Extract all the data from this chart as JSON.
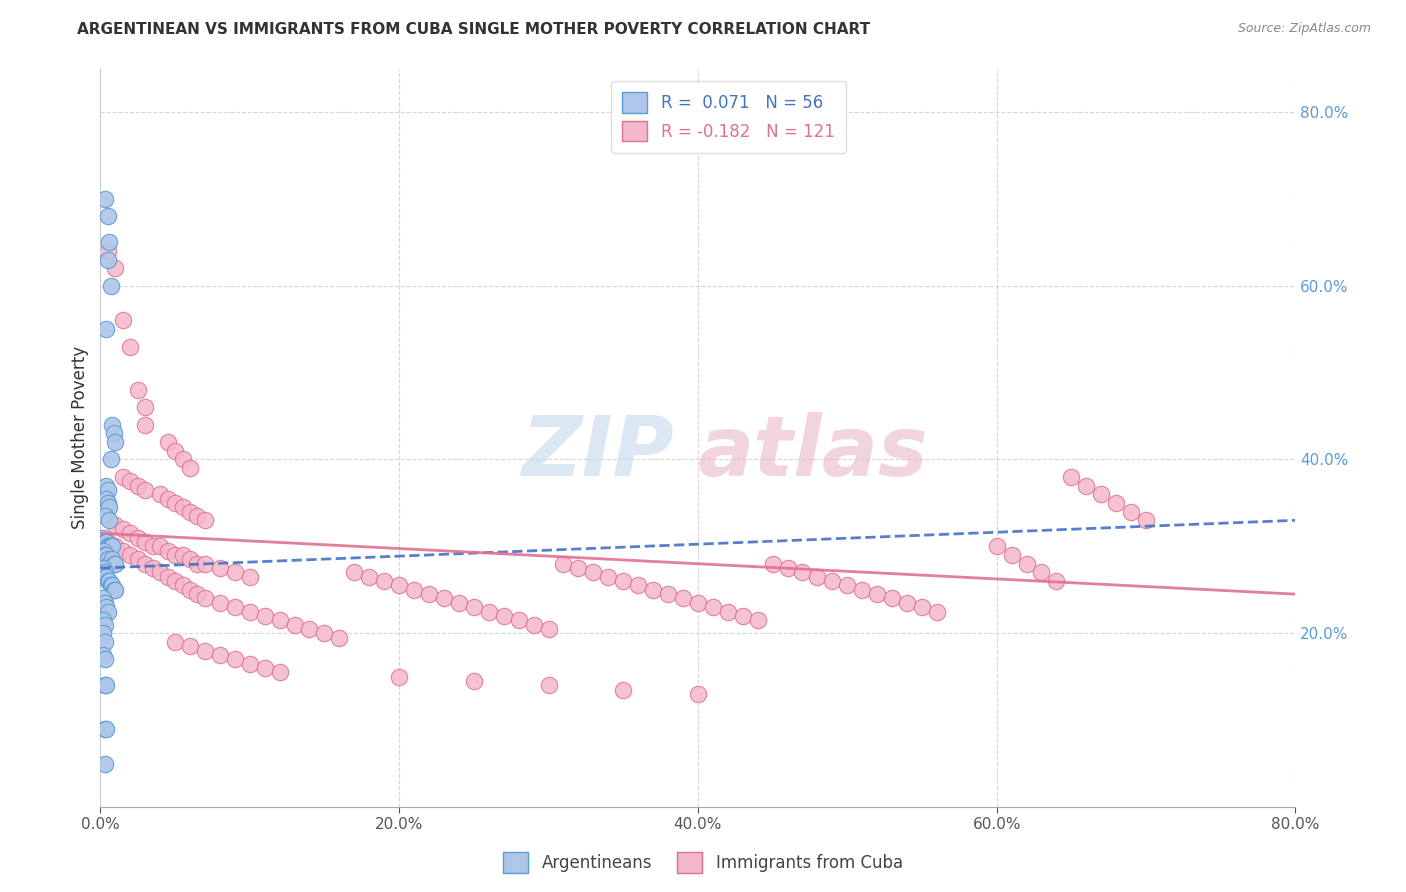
{
  "title": "ARGENTINEAN VS IMMIGRANTS FROM CUBA SINGLE MOTHER POVERTY CORRELATION CHART",
  "source": "Source: ZipAtlas.com",
  "ylabel": "Single Mother Poverty",
  "xlim": [
    0.0,
    0.8
  ],
  "ylim": [
    0.0,
    0.85
  ],
  "xticks": [
    0.0,
    0.2,
    0.4,
    0.6,
    0.8
  ],
  "xtick_labels": [
    "0.0%",
    "20.0%",
    "40.0%",
    "60.0%",
    "80.0%"
  ],
  "right_yticks": [
    0.2,
    0.4,
    0.6,
    0.8
  ],
  "right_ytick_labels": [
    "20.0%",
    "40.0%",
    "60.0%",
    "80.0%"
  ],
  "argentina_color": "#aec6e8",
  "argentina_edge": "#5b9bd5",
  "cuba_color": "#f4b8cb",
  "cuba_edge": "#e07090",
  "argentina_line_color": "#4472c4",
  "cuba_line_color": "#e07090",
  "watermark_zip_color": "#c5d8ee",
  "watermark_atlas_color": "#e8b8c8",
  "argentina_line_x": [
    0.0,
    0.8
  ],
  "argentina_line_y": [
    0.275,
    0.33
  ],
  "cuba_line_x": [
    0.0,
    0.8
  ],
  "cuba_line_y": [
    0.315,
    0.245
  ],
  "argentina_points": [
    [
      0.003,
      0.7
    ],
    [
      0.005,
      0.68
    ],
    [
      0.006,
      0.65
    ],
    [
      0.005,
      0.63
    ],
    [
      0.007,
      0.6
    ],
    [
      0.004,
      0.55
    ],
    [
      0.008,
      0.44
    ],
    [
      0.009,
      0.43
    ],
    [
      0.01,
      0.42
    ],
    [
      0.007,
      0.4
    ],
    [
      0.004,
      0.37
    ],
    [
      0.005,
      0.365
    ],
    [
      0.004,
      0.355
    ],
    [
      0.005,
      0.35
    ],
    [
      0.006,
      0.345
    ],
    [
      0.003,
      0.335
    ],
    [
      0.006,
      0.33
    ],
    [
      0.002,
      0.31
    ],
    [
      0.003,
      0.305
    ],
    [
      0.004,
      0.305
    ],
    [
      0.005,
      0.3
    ],
    [
      0.006,
      0.3
    ],
    [
      0.007,
      0.3
    ],
    [
      0.008,
      0.3
    ],
    [
      0.002,
      0.295
    ],
    [
      0.003,
      0.29
    ],
    [
      0.004,
      0.29
    ],
    [
      0.005,
      0.285
    ],
    [
      0.006,
      0.28
    ],
    [
      0.007,
      0.28
    ],
    [
      0.008,
      0.285
    ],
    [
      0.009,
      0.28
    ],
    [
      0.01,
      0.28
    ],
    [
      0.002,
      0.275
    ],
    [
      0.003,
      0.27
    ],
    [
      0.004,
      0.265
    ],
    [
      0.005,
      0.26
    ],
    [
      0.006,
      0.26
    ],
    [
      0.007,
      0.255
    ],
    [
      0.008,
      0.255
    ],
    [
      0.009,
      0.25
    ],
    [
      0.01,
      0.25
    ],
    [
      0.002,
      0.24
    ],
    [
      0.003,
      0.235
    ],
    [
      0.004,
      0.23
    ],
    [
      0.005,
      0.225
    ],
    [
      0.002,
      0.215
    ],
    [
      0.003,
      0.21
    ],
    [
      0.002,
      0.2
    ],
    [
      0.003,
      0.19
    ],
    [
      0.002,
      0.175
    ],
    [
      0.003,
      0.17
    ],
    [
      0.003,
      0.14
    ],
    [
      0.004,
      0.14
    ],
    [
      0.003,
      0.09
    ],
    [
      0.004,
      0.09
    ],
    [
      0.003,
      0.05
    ]
  ],
  "cuba_points": [
    [
      0.005,
      0.64
    ],
    [
      0.01,
      0.62
    ],
    [
      0.015,
      0.56
    ],
    [
      0.02,
      0.53
    ],
    [
      0.025,
      0.48
    ],
    [
      0.03,
      0.46
    ],
    [
      0.03,
      0.44
    ],
    [
      0.045,
      0.42
    ],
    [
      0.05,
      0.41
    ],
    [
      0.055,
      0.4
    ],
    [
      0.06,
      0.39
    ],
    [
      0.015,
      0.38
    ],
    [
      0.02,
      0.375
    ],
    [
      0.025,
      0.37
    ],
    [
      0.03,
      0.365
    ],
    [
      0.04,
      0.36
    ],
    [
      0.045,
      0.355
    ],
    [
      0.05,
      0.35
    ],
    [
      0.055,
      0.345
    ],
    [
      0.06,
      0.34
    ],
    [
      0.065,
      0.335
    ],
    [
      0.07,
      0.33
    ],
    [
      0.01,
      0.325
    ],
    [
      0.015,
      0.32
    ],
    [
      0.02,
      0.315
    ],
    [
      0.025,
      0.31
    ],
    [
      0.03,
      0.305
    ],
    [
      0.035,
      0.3
    ],
    [
      0.04,
      0.3
    ],
    [
      0.045,
      0.295
    ],
    [
      0.05,
      0.29
    ],
    [
      0.055,
      0.29
    ],
    [
      0.06,
      0.285
    ],
    [
      0.065,
      0.28
    ],
    [
      0.07,
      0.28
    ],
    [
      0.08,
      0.275
    ],
    [
      0.09,
      0.27
    ],
    [
      0.1,
      0.265
    ],
    [
      0.005,
      0.305
    ],
    [
      0.01,
      0.3
    ],
    [
      0.015,
      0.295
    ],
    [
      0.02,
      0.29
    ],
    [
      0.025,
      0.285
    ],
    [
      0.03,
      0.28
    ],
    [
      0.035,
      0.275
    ],
    [
      0.04,
      0.27
    ],
    [
      0.045,
      0.265
    ],
    [
      0.05,
      0.26
    ],
    [
      0.055,
      0.255
    ],
    [
      0.06,
      0.25
    ],
    [
      0.065,
      0.245
    ],
    [
      0.07,
      0.24
    ],
    [
      0.08,
      0.235
    ],
    [
      0.09,
      0.23
    ],
    [
      0.1,
      0.225
    ],
    [
      0.11,
      0.22
    ],
    [
      0.12,
      0.215
    ],
    [
      0.13,
      0.21
    ],
    [
      0.14,
      0.205
    ],
    [
      0.15,
      0.2
    ],
    [
      0.16,
      0.195
    ],
    [
      0.17,
      0.27
    ],
    [
      0.18,
      0.265
    ],
    [
      0.19,
      0.26
    ],
    [
      0.2,
      0.255
    ],
    [
      0.21,
      0.25
    ],
    [
      0.22,
      0.245
    ],
    [
      0.23,
      0.24
    ],
    [
      0.24,
      0.235
    ],
    [
      0.25,
      0.23
    ],
    [
      0.26,
      0.225
    ],
    [
      0.27,
      0.22
    ],
    [
      0.28,
      0.215
    ],
    [
      0.29,
      0.21
    ],
    [
      0.3,
      0.205
    ],
    [
      0.31,
      0.28
    ],
    [
      0.32,
      0.275
    ],
    [
      0.33,
      0.27
    ],
    [
      0.34,
      0.265
    ],
    [
      0.35,
      0.26
    ],
    [
      0.36,
      0.255
    ],
    [
      0.37,
      0.25
    ],
    [
      0.38,
      0.245
    ],
    [
      0.39,
      0.24
    ],
    [
      0.4,
      0.235
    ],
    [
      0.41,
      0.23
    ],
    [
      0.42,
      0.225
    ],
    [
      0.43,
      0.22
    ],
    [
      0.44,
      0.215
    ],
    [
      0.45,
      0.28
    ],
    [
      0.46,
      0.275
    ],
    [
      0.47,
      0.27
    ],
    [
      0.48,
      0.265
    ],
    [
      0.49,
      0.26
    ],
    [
      0.5,
      0.255
    ],
    [
      0.51,
      0.25
    ],
    [
      0.52,
      0.245
    ],
    [
      0.53,
      0.24
    ],
    [
      0.54,
      0.235
    ],
    [
      0.55,
      0.23
    ],
    [
      0.56,
      0.225
    ],
    [
      0.6,
      0.3
    ],
    [
      0.61,
      0.29
    ],
    [
      0.62,
      0.28
    ],
    [
      0.63,
      0.27
    ],
    [
      0.64,
      0.26
    ],
    [
      0.65,
      0.38
    ],
    [
      0.66,
      0.37
    ],
    [
      0.67,
      0.36
    ],
    [
      0.68,
      0.35
    ],
    [
      0.69,
      0.34
    ],
    [
      0.7,
      0.33
    ],
    [
      0.05,
      0.19
    ],
    [
      0.06,
      0.185
    ],
    [
      0.07,
      0.18
    ],
    [
      0.08,
      0.175
    ],
    [
      0.09,
      0.17
    ],
    [
      0.1,
      0.165
    ],
    [
      0.11,
      0.16
    ],
    [
      0.12,
      0.155
    ],
    [
      0.2,
      0.15
    ],
    [
      0.25,
      0.145
    ],
    [
      0.3,
      0.14
    ],
    [
      0.35,
      0.135
    ],
    [
      0.4,
      0.13
    ]
  ]
}
